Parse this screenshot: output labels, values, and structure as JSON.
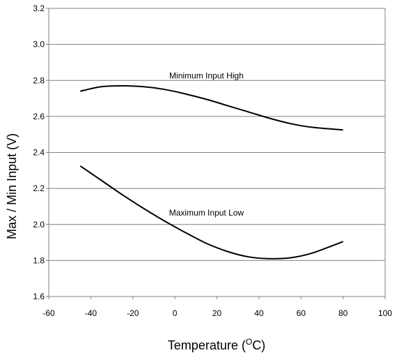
{
  "chart_data": {
    "type": "line",
    "xlabel": "Temperature (",
    "xlabel_sup": "O",
    "xlabel_unit": "C)",
    "ylabel": "Max / Min Input (V)",
    "xlim": [
      -60,
      100
    ],
    "ylim": [
      1.6,
      3.2
    ],
    "x_ticks": [
      "-60",
      "-40",
      "-20",
      "0",
      "20",
      "40",
      "60",
      "80",
      "100"
    ],
    "y_ticks": [
      "1.6",
      "1.8",
      "2.0",
      "2.2",
      "2.4",
      "2.6",
      "2.8",
      "3.0",
      "3.2"
    ],
    "grid": "horizontal",
    "series": [
      {
        "name": "Minimum Input High",
        "x": [
          -45,
          -35,
          -25,
          -15,
          -5,
          5,
          15,
          25,
          35,
          45,
          55,
          65,
          80
        ],
        "y": [
          2.74,
          2.765,
          2.77,
          2.765,
          2.75,
          2.725,
          2.695,
          2.66,
          2.625,
          2.59,
          2.56,
          2.54,
          2.525
        ]
      },
      {
        "name": "Maximum Input Low",
        "x": [
          -45,
          -35,
          -25,
          -15,
          -5,
          5,
          15,
          25,
          35,
          45,
          55,
          65,
          80
        ],
        "y": [
          2.325,
          2.245,
          2.165,
          2.09,
          2.02,
          1.955,
          1.895,
          1.85,
          1.82,
          1.81,
          1.815,
          1.84,
          1.905
        ]
      }
    ],
    "annotations": [
      {
        "text": "Minimum Input High",
        "x": 15,
        "y": 2.81
      },
      {
        "text": "Maximum Input Low",
        "x": 15,
        "y": 2.05
      }
    ]
  }
}
